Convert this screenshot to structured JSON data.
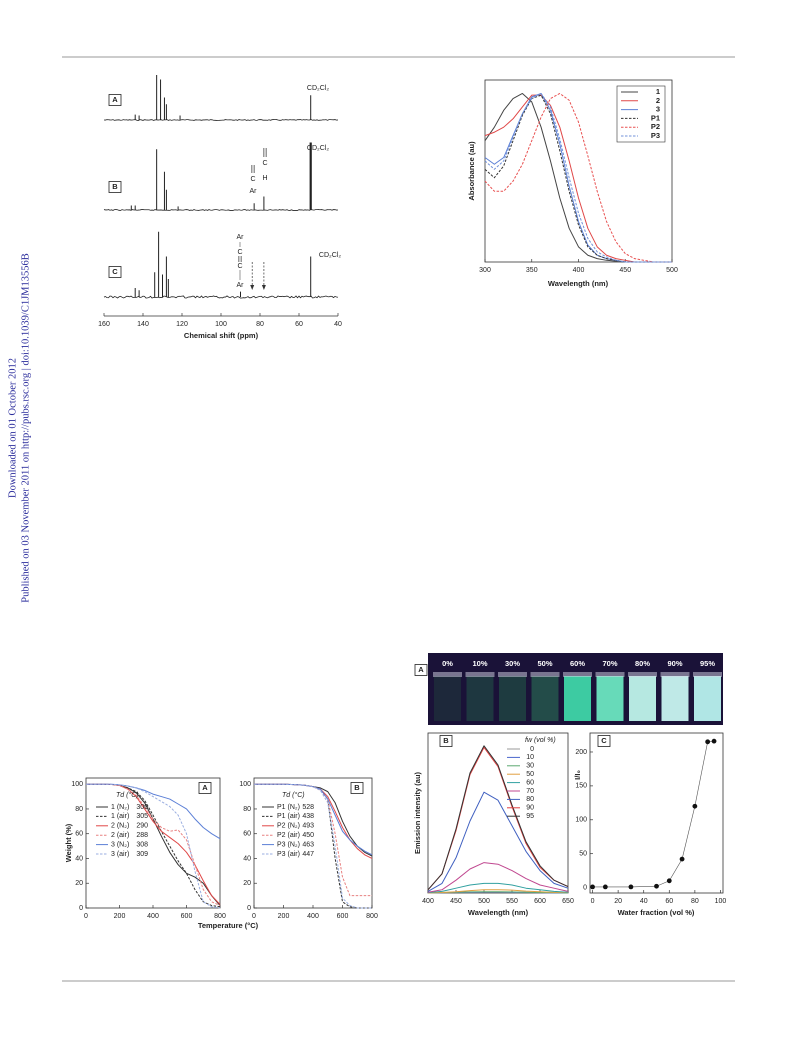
{
  "sidebar": {
    "downloaded": "Downloaded on 01 October 2012",
    "published": "Published on 03 November 2011 on http://pubs.rsc.org | doi:10.1039/C1JM13556B"
  },
  "photo": {
    "panel": "A",
    "labels": [
      "0%",
      "10%",
      "30%",
      "50%",
      "60%",
      "70%",
      "80%",
      "90%",
      "95%"
    ],
    "colors": [
      "#1d2a3a",
      "#1f3a40",
      "#1f3e40",
      "#24504a",
      "#3fd6a8",
      "#6ce6c0",
      "#bff4ea",
      "#c8f6f0",
      "#b8f2ee"
    ]
  },
  "chart_data": [
    {
      "type": "spectrum",
      "xlabel": "Chemical shift (ppm)",
      "xlim": [
        160,
        40
      ],
      "xticks": [
        160,
        140,
        120,
        100,
        80,
        60,
        40
      ],
      "solvent_label": "CD₂Cl₂",
      "annotations": [
        "Ar",
        "C",
        "H"
      ],
      "series": [
        {
          "name": "A",
          "color": "#222222",
          "x": [
            144,
            142,
            133,
            131,
            129,
            128,
            121,
            54
          ],
          "values": [
            0.12,
            0.1,
            1.0,
            0.9,
            0.5,
            0.35,
            0.1,
            0.55
          ]
        },
        {
          "name": "B",
          "color": "#222222",
          "x": [
            146,
            144,
            133,
            129,
            128,
            122,
            83,
            78,
            54
          ],
          "values": [
            0.1,
            0.1,
            1.35,
            0.85,
            0.45,
            0.08,
            0.15,
            0.3,
            1.5
          ]
        },
        {
          "name": "C",
          "color": "#222222",
          "x": [
            144,
            142,
            134,
            132,
            130,
            128,
            127,
            90,
            54
          ],
          "values": [
            0.2,
            0.15,
            0.55,
            1.45,
            0.5,
            0.9,
            0.4,
            0.12,
            0.9
          ]
        }
      ]
    },
    {
      "type": "line",
      "xlabel": "Wavelength (nm)",
      "ylabel": "Absorbance (au)",
      "xlim": [
        300,
        500
      ],
      "xticks": [
        300,
        350,
        400,
        450,
        500
      ],
      "ylim": [
        0,
        1.08
      ],
      "x": [
        300,
        310,
        320,
        330,
        340,
        350,
        360,
        370,
        380,
        390,
        400,
        410,
        420,
        430,
        440,
        450,
        460,
        470,
        480,
        490,
        500
      ],
      "series": [
        {
          "name": "1",
          "color": "#444444",
          "dash": false,
          "values": [
            0.72,
            0.8,
            0.9,
            0.97,
            1.0,
            0.95,
            0.8,
            0.6,
            0.38,
            0.2,
            0.09,
            0.04,
            0.02,
            0.01,
            0.005,
            0,
            0,
            0,
            0,
            0,
            0
          ]
        },
        {
          "name": "2",
          "color": "#e04848",
          "dash": false,
          "values": [
            0.75,
            0.77,
            0.8,
            0.85,
            0.92,
            0.99,
            0.99,
            0.93,
            0.8,
            0.6,
            0.38,
            0.2,
            0.09,
            0.04,
            0.02,
            0.01,
            0,
            0,
            0,
            0,
            0
          ]
        },
        {
          "name": "3",
          "color": "#5b7fd6",
          "dash": false,
          "values": [
            0.62,
            0.58,
            0.62,
            0.75,
            0.88,
            0.98,
            1.0,
            0.9,
            0.7,
            0.45,
            0.24,
            0.1,
            0.04,
            0.02,
            0.01,
            0,
            0,
            0,
            0,
            0,
            0
          ]
        },
        {
          "name": "P1",
          "color": "#333333",
          "dash": true,
          "values": [
            0.55,
            0.5,
            0.57,
            0.72,
            0.87,
            0.97,
            0.99,
            0.88,
            0.66,
            0.42,
            0.22,
            0.09,
            0.04,
            0.02,
            0.01,
            0,
            0,
            0,
            0,
            0,
            0
          ]
        },
        {
          "name": "P2",
          "color": "#e85050",
          "dash": true,
          "values": [
            0.48,
            0.42,
            0.42,
            0.48,
            0.58,
            0.72,
            0.86,
            0.97,
            1.0,
            0.96,
            0.83,
            0.63,
            0.42,
            0.24,
            0.12,
            0.05,
            0.02,
            0.01,
            0,
            0,
            0
          ]
        },
        {
          "name": "P3",
          "color": "#7090d8",
          "dash": true,
          "values": [
            0.6,
            0.55,
            0.6,
            0.74,
            0.88,
            0.97,
            1.0,
            0.92,
            0.73,
            0.5,
            0.29,
            0.14,
            0.06,
            0.03,
            0.01,
            0,
            0,
            0,
            0,
            0,
            0
          ]
        }
      ]
    },
    {
      "type": "line",
      "panel": "A",
      "xlabel": "Temperature (°C)",
      "ylabel": "Weight (%)",
      "legend_title": "Td (°C)",
      "xlim": [
        0,
        800
      ],
      "xticks": [
        0,
        200,
        400,
        600,
        800
      ],
      "ylim": [
        0,
        105
      ],
      "yticks": [
        0,
        20,
        40,
        60,
        80,
        100
      ],
      "x": [
        0,
        50,
        100,
        150,
        200,
        250,
        300,
        350,
        400,
        450,
        500,
        550,
        600,
        650,
        700,
        750,
        800
      ],
      "series": [
        {
          "name": "1 (N₂)",
          "td": 306,
          "color": "#333333",
          "dash": false,
          "values": [
            100,
            100,
            100,
            99.8,
            99,
            97,
            93,
            85,
            72,
            58,
            45,
            35,
            28,
            25,
            20,
            10,
            2
          ]
        },
        {
          "name": "1 (air)",
          "td": 305,
          "color": "#333333",
          "dash": true,
          "values": [
            100,
            100,
            100,
            99.8,
            99,
            97,
            94,
            87,
            75,
            62,
            50,
            38,
            28,
            15,
            5,
            2,
            1
          ]
        },
        {
          "name": "2 (N₂)",
          "td": 290,
          "color": "#e04848",
          "dash": false,
          "values": [
            100,
            100,
            100,
            99.8,
            99,
            96,
            90,
            80,
            70,
            62,
            57,
            52,
            45,
            35,
            22,
            10,
            3
          ]
        },
        {
          "name": "2 (air)",
          "td": 288,
          "color": "#e88080",
          "dash": true,
          "values": [
            100,
            100,
            100,
            99.8,
            99,
            96,
            91,
            82,
            72,
            65,
            62,
            63,
            55,
            35,
            15,
            5,
            2
          ]
        },
        {
          "name": "3 (N₂)",
          "td": 308,
          "color": "#5b7fd6",
          "dash": false,
          "values": [
            100,
            100,
            100,
            99.9,
            99.5,
            98.5,
            97,
            95,
            92,
            90,
            88,
            84,
            80,
            72,
            65,
            60,
            56
          ]
        },
        {
          "name": "3 (air)",
          "td": 309,
          "color": "#9aaee0",
          "dash": true,
          "values": [
            100,
            100,
            100,
            99.9,
            99.5,
            98.5,
            97,
            94,
            90,
            86,
            82,
            75,
            60,
            30,
            5,
            1,
            0
          ]
        }
      ]
    },
    {
      "type": "line",
      "panel": "B",
      "legend_title": "Td (°C)",
      "xlim": [
        0,
        800
      ],
      "xticks": [
        0,
        200,
        400,
        600,
        800
      ],
      "ylim": [
        0,
        105
      ],
      "yticks": [
        0,
        20,
        40,
        60,
        80,
        100
      ],
      "x": [
        0,
        50,
        100,
        150,
        200,
        250,
        300,
        350,
        400,
        450,
        500,
        550,
        600,
        650,
        700,
        750,
        800
      ],
      "series": [
        {
          "name": "P1 (N₂)",
          "td": 528,
          "color": "#333333",
          "dash": false,
          "values": [
            100,
            100,
            100,
            100,
            100,
            99.8,
            99.5,
            99,
            98,
            97,
            94,
            85,
            70,
            58,
            50,
            45,
            42
          ]
        },
        {
          "name": "P1 (air)",
          "td": 438,
          "color": "#333333",
          "dash": true,
          "values": [
            100,
            100,
            100,
            100,
            100,
            99.8,
            99.5,
            99,
            98,
            96,
            88,
            40,
            5,
            1,
            0,
            0,
            0
          ]
        },
        {
          "name": "P2 (N₂)",
          "td": 493,
          "color": "#e04848",
          "dash": false,
          "values": [
            100,
            100,
            100,
            100,
            100,
            99.8,
            99.5,
            99,
            98,
            96,
            90,
            78,
            65,
            55,
            48,
            43,
            40
          ]
        },
        {
          "name": "P2 (air)",
          "td": 450,
          "color": "#e88080",
          "dash": true,
          "values": [
            100,
            100,
            100,
            100,
            100,
            99.8,
            99.5,
            99,
            98,
            95,
            88,
            60,
            25,
            10,
            10,
            10,
            10
          ]
        },
        {
          "name": "P3 (N₂)",
          "td": 463,
          "color": "#5b7fd6",
          "dash": false,
          "values": [
            100,
            100,
            100,
            100,
            100,
            99.8,
            99.5,
            99,
            98,
            96,
            88,
            75,
            62,
            55,
            50,
            46,
            43
          ]
        },
        {
          "name": "P3 (air)",
          "td": 447,
          "color": "#9aaee0",
          "dash": true,
          "values": [
            100,
            100,
            100,
            100,
            100,
            99.8,
            99.5,
            99,
            98,
            95,
            85,
            50,
            8,
            2,
            0,
            0,
            0
          ]
        }
      ]
    },
    {
      "type": "line",
      "panel": "B",
      "xlabel": "Wavelength (nm)",
      "ylabel": "Emission intensity (au)",
      "legend_title": "fw (vol %)",
      "xlim": [
        400,
        650
      ],
      "xticks": [
        400,
        450,
        500,
        550,
        600,
        650
      ],
      "ylim": [
        0,
        100
      ],
      "x": [
        400,
        425,
        450,
        475,
        500,
        525,
        550,
        575,
        600,
        625,
        650
      ],
      "series": [
        {
          "name": "0",
          "color": "#999999",
          "dash": false,
          "values": [
            0.1,
            0.2,
            0.3,
            0.4,
            0.5,
            0.5,
            0.4,
            0.3,
            0.2,
            0.1,
            0.1
          ]
        },
        {
          "name": "10",
          "color": "#4a66cc",
          "dash": false,
          "values": [
            0.1,
            0.2,
            0.4,
            0.5,
            0.6,
            0.6,
            0.5,
            0.4,
            0.2,
            0.1,
            0.1
          ]
        },
        {
          "name": "30",
          "color": "#5aa870",
          "dash": false,
          "values": [
            0.1,
            0.3,
            0.5,
            0.7,
            0.8,
            0.8,
            0.7,
            0.5,
            0.3,
            0.2,
            0.1
          ]
        },
        {
          "name": "50",
          "color": "#e0a040",
          "dash": false,
          "values": [
            0.1,
            0.3,
            0.8,
            1.5,
            2,
            2,
            1.8,
            1.2,
            0.8,
            0.4,
            0.2
          ]
        },
        {
          "name": "60",
          "color": "#30a0a0",
          "dash": false,
          "values": [
            0.2,
            1,
            3,
            5,
            6,
            6,
            5,
            3,
            2,
            1,
            0.5
          ]
        },
        {
          "name": "70",
          "color": "#c04890",
          "dash": false,
          "values": [
            0.5,
            2,
            8,
            15,
            19,
            18,
            14,
            9,
            5,
            3,
            1
          ]
        },
        {
          "name": "80",
          "color": "#4060c0",
          "dash": false,
          "values": [
            1,
            6,
            22,
            45,
            63,
            58,
            42,
            26,
            14,
            6,
            3
          ]
        },
        {
          "name": "90",
          "color": "#e04040",
          "dash": false,
          "values": [
            2,
            12,
            39,
            74,
            91,
            79,
            54,
            31,
            16,
            8,
            4
          ]
        },
        {
          "name": "95",
          "color": "#333333",
          "dash": false,
          "values": [
            2,
            12,
            40,
            75,
            92,
            80,
            55,
            32,
            17,
            8,
            4
          ]
        }
      ]
    },
    {
      "type": "scatter",
      "panel": "C",
      "xlabel": "Water fraction (vol %)",
      "ylabel": "I/I₀",
      "color": "#111111",
      "xlim": [
        -2,
        102
      ],
      "xticks": [
        0,
        20,
        40,
        60,
        80,
        100
      ],
      "ylim": [
        -8,
        228
      ],
      "yticks": [
        0,
        50,
        100,
        150,
        200
      ],
      "x": [
        0,
        10,
        30,
        50,
        60,
        70,
        80,
        90,
        95
      ],
      "values": [
        1,
        1,
        1,
        2,
        10,
        42,
        120,
        215,
        216
      ]
    }
  ]
}
